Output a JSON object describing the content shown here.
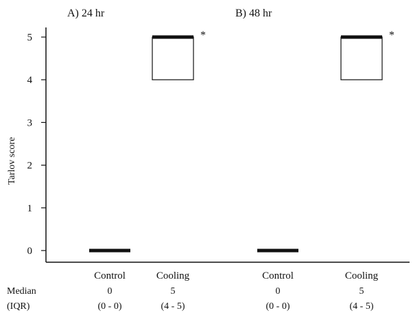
{
  "chart_data": {
    "type": "box",
    "ylabel": "Tarlov score",
    "ylim": [
      -0.3,
      5.4
    ],
    "yticks": [
      0,
      1,
      2,
      3,
      4,
      5
    ],
    "grid": false,
    "panels": [
      {
        "label": "A) 24 hr"
      },
      {
        "label": "B) 48 hr"
      }
    ],
    "groups": [
      {
        "panel": 0,
        "category": "Control",
        "median": 0,
        "q1": 0,
        "q3": 0,
        "median_text": "0",
        "iqr_text": "(0 - 0)",
        "annotation": ""
      },
      {
        "panel": 0,
        "category": "Cooling",
        "median": 5,
        "q1": 4,
        "q3": 5,
        "median_text": "5",
        "iqr_text": "(4 - 5)",
        "annotation": "*"
      },
      {
        "panel": 1,
        "category": "Control",
        "median": 0,
        "q1": 0,
        "q3": 0,
        "median_text": "0",
        "iqr_text": "(0 - 0)",
        "annotation": ""
      },
      {
        "panel": 1,
        "category": "Cooling",
        "median": 5,
        "q1": 4,
        "q3": 5,
        "median_text": "5",
        "iqr_text": "(4 - 5)",
        "annotation": "*"
      }
    ],
    "row_labels": {
      "median": "Median",
      "iqr": "(IQR)"
    }
  }
}
